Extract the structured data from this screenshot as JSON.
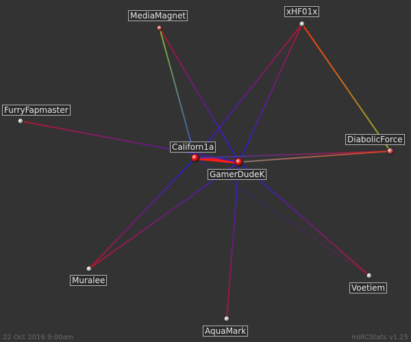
{
  "footer": {
    "date": "22 Oct 2016 9:00am",
    "version": "mIRCStats v1.25"
  },
  "nodes": [
    {
      "id": "MediaMagnet",
      "label": "MediaMagnet"
    },
    {
      "id": "xHF01x",
      "label": "xHF01x"
    },
    {
      "id": "FurryFapmaster",
      "label": "FurryFapmaster"
    },
    {
      "id": "DiabolicForce",
      "label": "DiabolicForce"
    },
    {
      "id": "Californ1a",
      "label": "Californ1a"
    },
    {
      "id": "GamerDudeK",
      "label": "GamerDudeK"
    },
    {
      "id": "Muralee",
      "label": "Muralee"
    },
    {
      "id": "Voetiem",
      "label": "Voetiem"
    },
    {
      "id": "AquaMark",
      "label": "AquaMark"
    }
  ],
  "edges": [
    {
      "source": "Californ1a",
      "target": "GamerDudeK",
      "strength": "strong"
    },
    {
      "source": "MediaMagnet",
      "target": "Californ1a",
      "strength": "medium"
    },
    {
      "source": "MediaMagnet",
      "target": "GamerDudeK",
      "strength": "medium"
    },
    {
      "source": "xHF01x",
      "target": "Californ1a",
      "strength": "medium"
    },
    {
      "source": "xHF01x",
      "target": "GamerDudeK",
      "strength": "medium"
    },
    {
      "source": "xHF01x",
      "target": "DiabolicForce",
      "strength": "medium"
    },
    {
      "source": "FurryFapmaster",
      "target": "GamerDudeK",
      "strength": "medium"
    },
    {
      "source": "Californ1a",
      "target": "DiabolicForce",
      "strength": "medium"
    },
    {
      "source": "GamerDudeK",
      "target": "DiabolicForce",
      "strength": "medium"
    },
    {
      "source": "Californ1a",
      "target": "Muralee",
      "strength": "medium"
    },
    {
      "source": "GamerDudeK",
      "target": "Muralee",
      "strength": "medium"
    },
    {
      "source": "GamerDudeK",
      "target": "Voetiem",
      "strength": "medium"
    },
    {
      "source": "GamerDudeK",
      "target": "AquaMark",
      "strength": "medium"
    },
    {
      "source": "Californ1a",
      "target": "Voetiem",
      "strength": "weak"
    }
  ],
  "colors": {
    "background": "#333333",
    "edge_cool": "#2020d0",
    "edge_warm": "#b01830",
    "edge_hot": "#ff1a1a",
    "edge_green": "#8ab52a",
    "node_hub": "#ff2020",
    "node_leaf": "#c0c0c0",
    "node_leaf_warm": "#e07070"
  }
}
